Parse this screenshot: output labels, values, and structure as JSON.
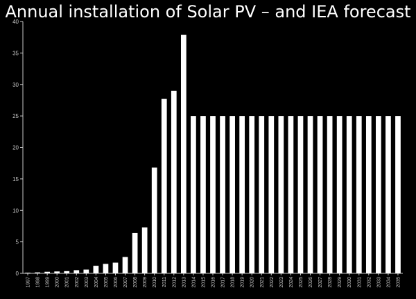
{
  "chart_data": {
    "type": "bar",
    "title": "Annual installation of Solar PV – and IEA forecast",
    "xlabel": "",
    "ylabel": "",
    "ylim": [
      0,
      40
    ],
    "yticks": [
      0,
      5,
      10,
      15,
      20,
      25,
      30,
      35,
      40
    ],
    "grid": false,
    "legend": "none",
    "categories": [
      "1997",
      "1998",
      "1999",
      "2000",
      "2001",
      "2002",
      "2003",
      "2004",
      "2005",
      "2006",
      "2007",
      "2008",
      "2009",
      "2010",
      "2011",
      "2012",
      "2013",
      "2014",
      "2015",
      "2016",
      "2017",
      "2018",
      "2019",
      "2020",
      "2021",
      "2022",
      "2023",
      "2024",
      "2025",
      "2026",
      "2027",
      "2028",
      "2029",
      "2030",
      "2031",
      "2032",
      "2033",
      "2034",
      "2035"
    ],
    "values": [
      0.1,
      0.15,
      0.25,
      0.3,
      0.35,
      0.5,
      0.6,
      1.2,
      1.5,
      1.7,
      2.6,
      6.4,
      7.3,
      16.8,
      27.7,
      29,
      37.9,
      25,
      25,
      25,
      25,
      25,
      25,
      25,
      25,
      25,
      25,
      25,
      25,
      25,
      25,
      25,
      25,
      25,
      25,
      25,
      25,
      25,
      25
    ],
    "colors": {
      "background": "#000000",
      "bar": "#ffffff",
      "axis": "#c8c8c8"
    }
  }
}
